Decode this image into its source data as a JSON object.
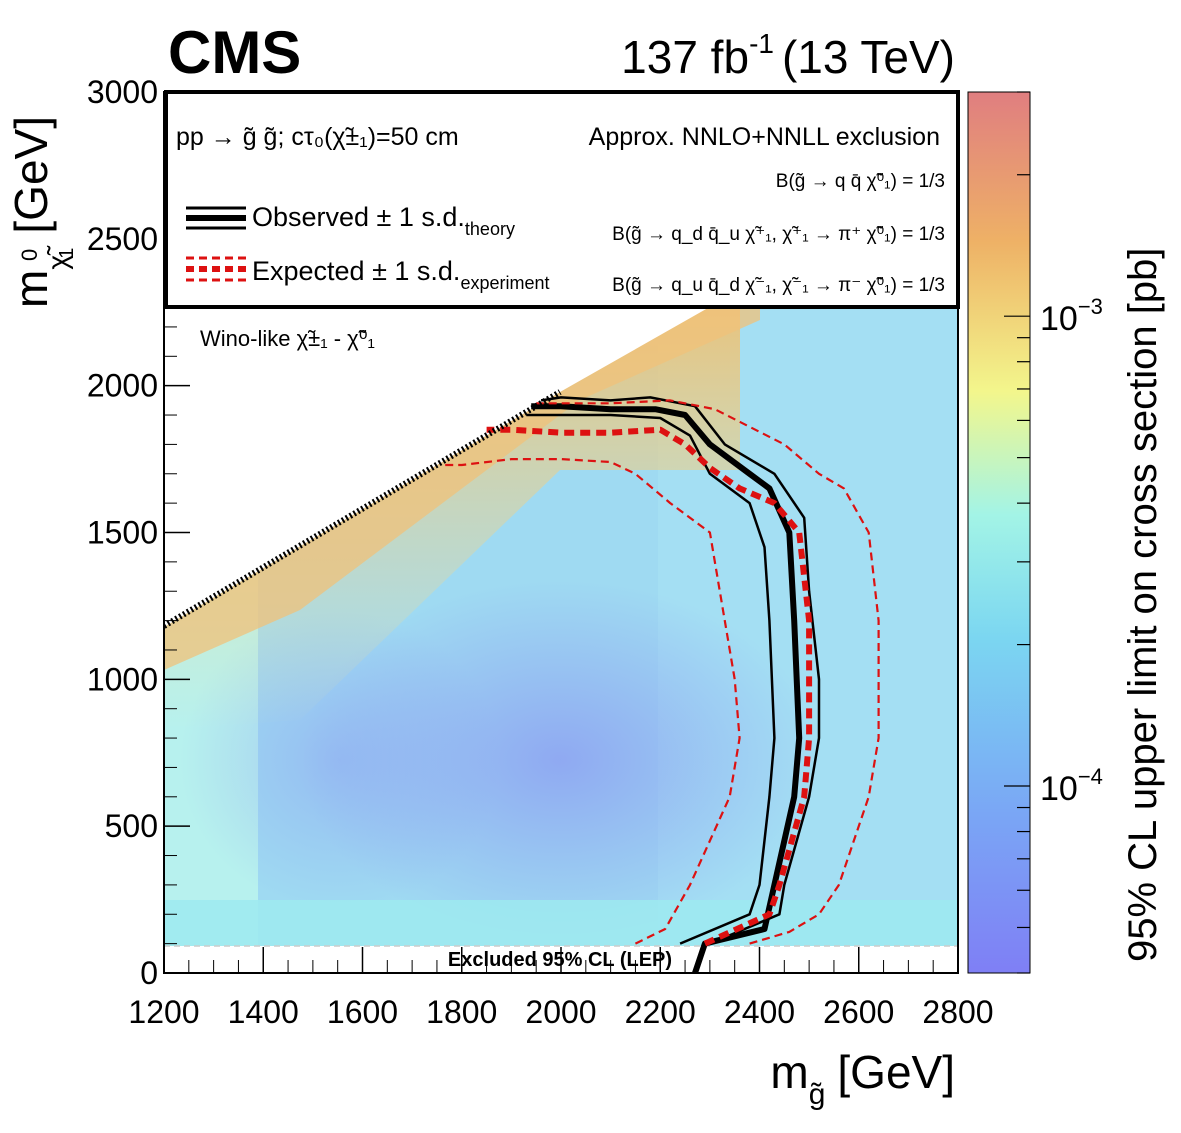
{
  "chart_data": {
    "type": "heatmap",
    "experiment": "CMS",
    "lumi": "137 fb",
    "lumi_exp": "-1",
    "energy": "(13 TeV)",
    "xlabel": {
      "main": "m",
      "sub": "g̃",
      "unit": "[GeV]"
    },
    "ylabel": {
      "main": "m",
      "sub": "χ̃",
      "sup": "0",
      "sub2": "1",
      "unit": "[GeV]"
    },
    "zlabel": "95% CL upper limit on cross section [pb]",
    "xlim": [
      1200,
      2800
    ],
    "ylim": [
      0,
      3000
    ],
    "xticks": [
      1200,
      1400,
      1600,
      1800,
      2000,
      2200,
      2400,
      2600,
      2800
    ],
    "xtick_labels": [
      "1200",
      "1400",
      "1600",
      "1800",
      "2000",
      "2200",
      "2400",
      "2600",
      "2800"
    ],
    "yticks": [
      0,
      500,
      1000,
      1500,
      2000,
      2500,
      3000
    ],
    "ytick_labels": [
      "0",
      "500",
      "1000",
      "1500",
      "2000",
      "2500",
      "3000"
    ],
    "zlim": [
      4e-05,
      0.003
    ],
    "zscale": "log",
    "zticks": [
      {
        "value": 0.0001,
        "base": "10",
        "exp": "−4"
      },
      {
        "value": 0.001,
        "base": "10",
        "exp": "−3"
      }
    ],
    "legend": {
      "process_line": "pp → g̃ g̃; cτ₀(χ̃±₁)=50 cm",
      "approx_line": "Approx. NNLO+NNLL exclusion",
      "observed": {
        "main": "Observed ± 1 s.d.",
        "sub": "theory"
      },
      "expected": {
        "main": "Expected ± 1 s.d.",
        "sub": "experiment"
      },
      "br1": "B(g̃ → q q̄ χ̃⁰₁) = 1/3",
      "br2": "B(g̃ → q_d q̄_u χ̃⁺₁, χ̃⁺₁ → π⁺ χ̃⁰₁) = 1/3",
      "br3": "B(g̃ → q_u q̄_d χ̃⁻₁, χ̃⁻₁ → π⁻ χ̃⁰₁) = 1/3"
    },
    "annotations": {
      "wino": "Wino-like χ̃±₁ - χ̃⁰₁",
      "lep": "Excluded 95% CL (LEP)"
    },
    "lep_limit_y": 91.9,
    "series": [
      {
        "name": "Observed",
        "points": [
          [
            2270,
            0
          ],
          [
            2290,
            100
          ],
          [
            2410,
            150
          ],
          [
            2430,
            300
          ],
          [
            2470,
            600
          ],
          [
            2480,
            800
          ],
          [
            2470,
            1200
          ],
          [
            2460,
            1500
          ],
          [
            2420,
            1650
          ],
          [
            2380,
            1700
          ],
          [
            2300,
            1800
          ],
          [
            2250,
            1900
          ],
          [
            2190,
            1920
          ],
          [
            2100,
            1920
          ],
          [
            2000,
            1930
          ],
          [
            1940,
            1930
          ]
        ]
      },
      {
        "name": "Observed +1 s.d.",
        "points": [
          [
            2300,
            100
          ],
          [
            2440,
            200
          ],
          [
            2450,
            300
          ],
          [
            2500,
            600
          ],
          [
            2520,
            800
          ],
          [
            2520,
            1000
          ],
          [
            2500,
            1300
          ],
          [
            2490,
            1550
          ],
          [
            2430,
            1700
          ],
          [
            2330,
            1800
          ],
          [
            2270,
            1930
          ],
          [
            2180,
            1960
          ],
          [
            2100,
            1950
          ],
          [
            2000,
            1960
          ],
          [
            1960,
            1950
          ]
        ]
      },
      {
        "name": "Observed −1 s.d.",
        "points": [
          [
            2240,
            100
          ],
          [
            2380,
            200
          ],
          [
            2400,
            300
          ],
          [
            2420,
            600
          ],
          [
            2430,
            800
          ],
          [
            2420,
            1200
          ],
          [
            2410,
            1450
          ],
          [
            2380,
            1600
          ],
          [
            2300,
            1700
          ],
          [
            2260,
            1830
          ],
          [
            2200,
            1890
          ],
          [
            2100,
            1900
          ],
          [
            2000,
            1900
          ],
          [
            1930,
            1900
          ]
        ]
      },
      {
        "name": "Expected",
        "points": [
          [
            2290,
            100
          ],
          [
            2420,
            200
          ],
          [
            2440,
            300
          ],
          [
            2490,
            600
          ],
          [
            2500,
            800
          ],
          [
            2500,
            1200
          ],
          [
            2480,
            1500
          ],
          [
            2430,
            1600
          ],
          [
            2360,
            1650
          ],
          [
            2300,
            1720
          ],
          [
            2250,
            1800
          ],
          [
            2200,
            1850
          ],
          [
            2100,
            1840
          ],
          [
            2000,
            1840
          ],
          [
            1900,
            1850
          ],
          [
            1850,
            1850
          ]
        ]
      },
      {
        "name": "Expected +1 s.d.",
        "points": [
          [
            2380,
            100
          ],
          [
            2460,
            140
          ],
          [
            2520,
            200
          ],
          [
            2560,
            300
          ],
          [
            2620,
            600
          ],
          [
            2640,
            800
          ],
          [
            2640,
            1200
          ],
          [
            2620,
            1500
          ],
          [
            2570,
            1650
          ],
          [
            2520,
            1700
          ],
          [
            2450,
            1800
          ],
          [
            2310,
            1920
          ],
          [
            2220,
            1950
          ],
          [
            2100,
            1940
          ],
          [
            2000,
            1940
          ],
          [
            1950,
            1940
          ]
        ]
      },
      {
        "name": "Expected −1 s.d.",
        "points": [
          [
            2150,
            100
          ],
          [
            2210,
            150
          ],
          [
            2260,
            300
          ],
          [
            2340,
            600
          ],
          [
            2360,
            800
          ],
          [
            2350,
            1000
          ],
          [
            2320,
            1300
          ],
          [
            2300,
            1500
          ],
          [
            2220,
            1600
          ],
          [
            2150,
            1700
          ],
          [
            2100,
            1740
          ],
          [
            2000,
            1750
          ],
          [
            1900,
            1750
          ],
          [
            1800,
            1730
          ],
          [
            1760,
            1730
          ]
        ]
      }
    ],
    "heatmap_bands": [
      {
        "x_gev": 1200,
        "color": "#f0c87e"
      },
      {
        "x_gev": 1400,
        "color": "#f6e79a"
      },
      {
        "x_gev": 1600,
        "color": "#a6f2ee"
      },
      {
        "x_gev": 1900,
        "color": "#98ddf3"
      },
      {
        "x_gev": 2300,
        "color": "#a4d6f2"
      }
    ],
    "palette": {
      "low": "#7f7ff5",
      "mid_low": "#76d4f3",
      "mid": "#9df5ee",
      "yellow": "#f6f68f",
      "orange": "#edb064",
      "high": "#e07c7c",
      "observed_line": "#000000",
      "expected_line": "#dd1111"
    }
  }
}
